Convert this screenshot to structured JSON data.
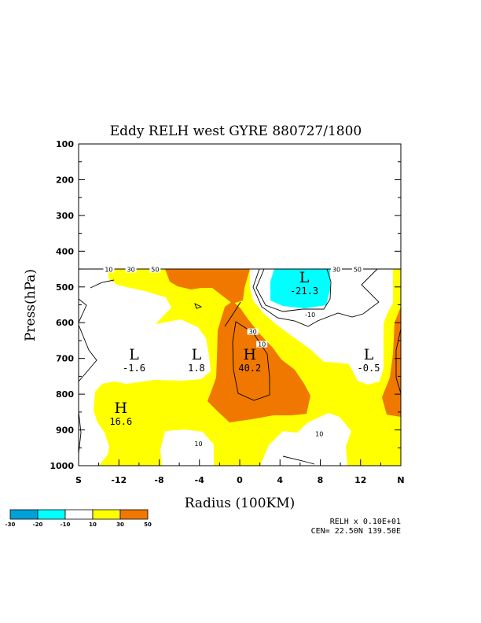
{
  "chart_data": {
    "type": "contour",
    "title": "Eddy RELH west GYRE 880727/1800",
    "xlabel": "Radius (100KM)",
    "ylabel": "Press(hPa)",
    "xlim": [
      -16,
      16
    ],
    "ylim": [
      1000,
      100
    ],
    "x_ticks": [
      {
        "value": -16,
        "label": "S"
      },
      {
        "value": -12,
        "label": "-12"
      },
      {
        "value": -8,
        "label": "-8"
      },
      {
        "value": -4,
        "label": "-4"
      },
      {
        "value": 0,
        "label": "0"
      },
      {
        "value": 4,
        "label": "4"
      },
      {
        "value": 8,
        "label": "8"
      },
      {
        "value": 12,
        "label": "12"
      },
      {
        "value": 16,
        "label": "N"
      }
    ],
    "y_ticks": [
      100,
      200,
      300,
      400,
      500,
      600,
      700,
      800,
      900,
      1000
    ],
    "data_top_pressure": 450,
    "contour_levels": [
      -30,
      -20,
      -10,
      10,
      30,
      50
    ],
    "extrema": [
      {
        "type": "L",
        "x": -10.5,
        "p": 705,
        "value": "-1.6"
      },
      {
        "type": "L",
        "x": -4.3,
        "p": 705,
        "value": "1.8"
      },
      {
        "type": "H",
        "x": 1.0,
        "p": 705,
        "value": "40.2"
      },
      {
        "type": "L",
        "x": 6.4,
        "p": 490,
        "value": "-21.3"
      },
      {
        "type": "L",
        "x": 12.8,
        "p": 705,
        "value": "-0.5"
      },
      {
        "type": "H",
        "x": -11.8,
        "p": 855,
        "value": "16.6"
      }
    ],
    "contour_labels": [
      {
        "x": -13.0,
        "p": 451,
        "text": "10"
      },
      {
        "x": -10.8,
        "p": 451,
        "text": "30"
      },
      {
        "x": -8.4,
        "p": 451,
        "text": "50"
      },
      {
        "x": 9.6,
        "p": 451,
        "text": "30"
      },
      {
        "x": 11.7,
        "p": 451,
        "text": "50"
      },
      {
        "x": 7.0,
        "p": 578,
        "text": "-10"
      },
      {
        "x": 1.3,
        "p": 625,
        "text": "30"
      },
      {
        "x": 2.2,
        "p": 660,
        "text": "10"
      },
      {
        "x": 7.9,
        "p": 911,
        "text": "10"
      },
      {
        "x": -4.1,
        "p": 938,
        "text": "10"
      }
    ],
    "legend": {
      "bins": [
        {
          "from": -30,
          "to": -20,
          "color": "#00a0d8"
        },
        {
          "from": -20,
          "to": -10,
          "color": "#00ffff"
        },
        {
          "from": -10,
          "to": 10,
          "color": "#ffffff"
        },
        {
          "from": 10,
          "to": 30,
          "color": "#ffff00"
        },
        {
          "from": 30,
          "to": 50,
          "color": "#f07800"
        }
      ],
      "tick_labels": [
        "-30",
        "-20",
        "-10",
        "10",
        "30",
        "50"
      ]
    },
    "footer": [
      "RELH x  0.10E+01",
      "CEN= 22.50N  139.50E"
    ],
    "colors": {
      "cyan": "#00ffff",
      "yellow": "#ffff00",
      "orange": "#f07800",
      "white": "#ffffff"
    }
  }
}
